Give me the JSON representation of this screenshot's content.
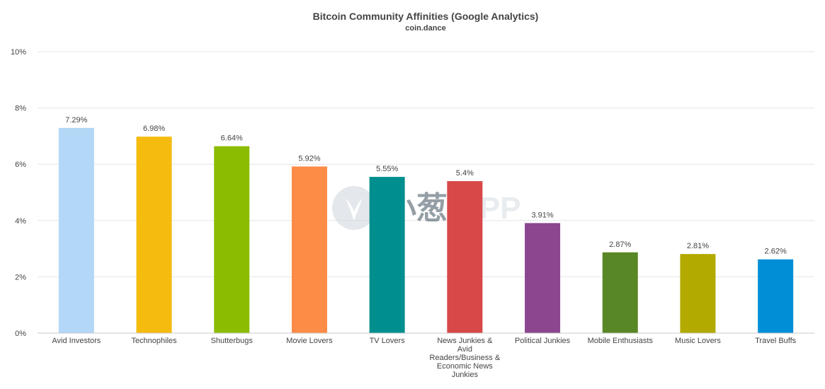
{
  "chart_data": {
    "type": "bar",
    "title": "Bitcoin Community Affinities (Google Analytics)",
    "subtitle": "coin.dance",
    "categories": [
      "Avid Investors",
      "Technophiles",
      "Shutterbugs",
      "Movie Lovers",
      "TV Lovers",
      "News Junkies & Avid Readers/Business & Economic News Junkies",
      "Political Junkies",
      "Mobile Enthusiasts",
      "Music Lovers",
      "Travel Buffs"
    ],
    "category_label_lines": [
      [
        "Avid Investors"
      ],
      [
        "Technophiles"
      ],
      [
        "Shutterbugs"
      ],
      [
        "Movie Lovers"
      ],
      [
        "TV Lovers"
      ],
      [
        "News Junkies &",
        "Avid",
        "Readers/Business &",
        "Economic News",
        "Junkies"
      ],
      [
        "Political Junkies"
      ],
      [
        "Mobile Enthusiasts"
      ],
      [
        "Music Lovers"
      ],
      [
        "Travel Buffs"
      ]
    ],
    "values": [
      7.29,
      6.98,
      6.64,
      5.92,
      5.55,
      5.4,
      3.91,
      2.87,
      2.81,
      2.62
    ],
    "value_labels": [
      "7.29%",
      "6.98%",
      "6.64%",
      "5.92%",
      "5.55%",
      "5.4%",
      "3.91%",
      "2.87%",
      "2.81%",
      "2.62%"
    ],
    "colors": [
      "#b3d7f7",
      "#f5bb0f",
      "#8cbc00",
      "#fd8c46",
      "#008e8e",
      "#d84848",
      "#8c4690",
      "#588725",
      "#b3aa00",
      "#008fd6"
    ],
    "ylim": [
      0,
      10
    ],
    "yticks": [
      0,
      2,
      4,
      6,
      8,
      10
    ],
    "ytick_labels": [
      "0%",
      "2%",
      "4%",
      "6%",
      "8%",
      "10%"
    ],
    "grid": true,
    "legend": "none"
  },
  "watermark": {
    "text_cn": "小葱",
    "text_en": "APP"
  }
}
